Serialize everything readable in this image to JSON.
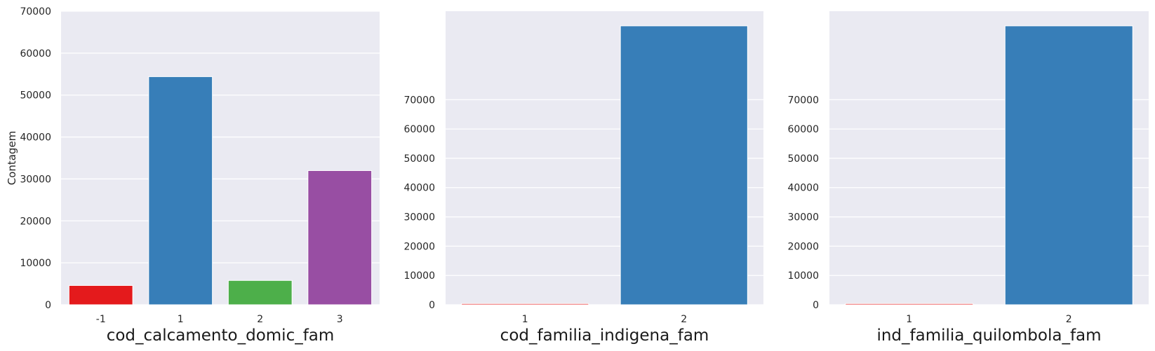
{
  "chart_data": [
    {
      "type": "bar",
      "categories": [
        "-1",
        "1",
        "2",
        "3"
      ],
      "values": [
        4600,
        54400,
        5800,
        32000
      ],
      "colors": [
        "#e41a1c",
        "#377eb8",
        "#4daf4a",
        "#984ea3"
      ],
      "xlabel": "cod_calcamento_domic_fam",
      "ylabel": "Contagem",
      "ylim": [
        0,
        70000
      ],
      "yticks": [
        0,
        10000,
        20000,
        30000,
        40000,
        50000,
        60000,
        70000
      ],
      "ytick_labels": [
        "0",
        "10000",
        "20000",
        "30000",
        "40000",
        "50000",
        "60000",
        "70000"
      ],
      "grid": true,
      "style": "seaborn-darkgrid"
    },
    {
      "type": "bar",
      "categories": [
        "1",
        "2"
      ],
      "values": [
        400,
        95200
      ],
      "colors": [
        "#e41a1c",
        "#377eb8"
      ],
      "xlabel": "cod_familia_indigena_fam",
      "ylabel": "",
      "ylim": [
        0,
        100200
      ],
      "yticks": [
        0,
        10000,
        20000,
        30000,
        40000,
        50000,
        60000,
        70000
      ],
      "ytick_labels": [
        "0",
        "10000",
        "20000",
        "30000",
        "40000",
        "50000",
        "60000",
        "70000"
      ],
      "grid": true,
      "style": "seaborn-darkgrid"
    },
    {
      "type": "bar",
      "categories": [
        "1",
        "2"
      ],
      "values": [
        400,
        95200
      ],
      "colors": [
        "#e41a1c",
        "#377eb8"
      ],
      "xlabel": "ind_familia_quilombola_fam",
      "ylabel": "",
      "ylim": [
        0,
        100200
      ],
      "yticks": [
        0,
        10000,
        20000,
        30000,
        40000,
        50000,
        60000,
        70000
      ],
      "ytick_labels": [
        "0",
        "10000",
        "20000",
        "30000",
        "40000",
        "50000",
        "60000",
        "70000"
      ],
      "grid": true,
      "style": "seaborn-darkgrid"
    }
  ]
}
